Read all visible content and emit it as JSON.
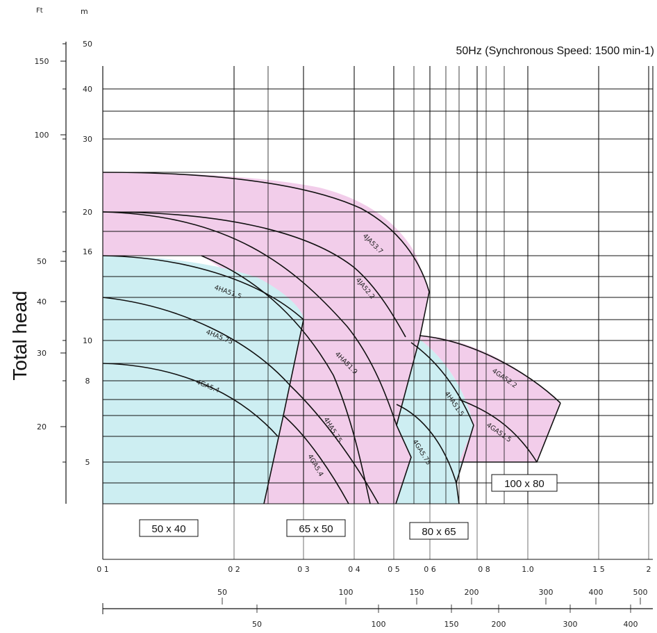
{
  "chart_data": {
    "type": "area",
    "title": "50Hz (Synchronous Speed: 1500 min-1)",
    "ylabel": "Total head",
    "y_unit_ft": "Ft",
    "y_unit_m": "m",
    "x_scale": "log",
    "y_scale": "log",
    "grid": true,
    "x_ticks_main": [
      "0 1",
      "0 2",
      "0 3",
      "0 4",
      "0 5",
      "0 6",
      "0 8",
      "1.0",
      "1 5",
      "2"
    ],
    "x_ticks_main_values": [
      0.1,
      0.2,
      0.3,
      0.4,
      0.5,
      0.6,
      0.8,
      1.0,
      1.5,
      2.0
    ],
    "x_ticks_second": [
      "50",
      "100",
      "150",
      "200",
      "300",
      "400",
      "500"
    ],
    "x_ticks_third": [
      "50",
      "100",
      "150",
      "200",
      "300",
      "400"
    ],
    "y_ticks_m": [
      "50",
      "40",
      "30",
      "20",
      "16",
      "10",
      "8",
      "5"
    ],
    "y_ticks_m_values": [
      50,
      40,
      30,
      20,
      16,
      10,
      8,
      5
    ],
    "y_ticks_ft": [
      "150",
      "100",
      "50",
      "40",
      "30",
      "20"
    ],
    "pump_sizes": [
      {
        "label": "50 x 40",
        "color": "#cdeef2"
      },
      {
        "label": "65 x 50",
        "color": "#f2cdea"
      },
      {
        "label": "80 x 65",
        "color": "#cdeef2"
      },
      {
        "label": "100 x 80",
        "color": "#f2cdea"
      }
    ],
    "series": [
      {
        "name": "4GA5.4",
        "size": "50 x 40",
        "x": [
          0.1,
          0.15,
          0.2,
          0.25,
          0.268
        ],
        "y": [
          8.8,
          8.5,
          7.9,
          6.8,
          6.0
        ]
      },
      {
        "name": "4HA5.75",
        "size": "50 x 40",
        "x": [
          0.1,
          0.15,
          0.2,
          0.25,
          0.284
        ],
        "y": [
          11.9,
          11.4,
          10.5,
          8.9,
          7.8
        ]
      },
      {
        "name": "4HA51.5",
        "size": "50 x 40",
        "x": [
          0.1,
          0.15,
          0.2,
          0.26,
          0.3
        ],
        "y": [
          14.7,
          14.2,
          13.4,
          11.9,
          10.6
        ]
      },
      {
        "name": "4GA5.4",
        "size": "65 x 50",
        "x": [
          0.268,
          0.3,
          0.33,
          0.36,
          0.39
        ],
        "y": [
          6.8,
          6.4,
          5.7,
          4.9,
          4.3
        ]
      },
      {
        "name": "4HA5.75",
        "size": "65 x 50",
        "x": [
          0.284,
          0.32,
          0.36,
          0.4,
          0.423
        ],
        "y": [
          7.8,
          7.4,
          6.5,
          5.0,
          4.3
        ]
      },
      {
        "name": "4HA51.5",
        "size": "65 x 50",
        "x": [
          0.3,
          0.34,
          0.4,
          0.46,
          0.492
        ],
        "y": [
          10.6,
          10.0,
          8.5,
          6.1,
          4.3
        ]
      },
      {
        "name": "4HA51.9",
        "size": "65 x 50",
        "x": [
          0.1,
          0.2,
          0.25,
          0.3,
          0.35,
          0.42,
          0.5
        ],
        "y": [
          14.8,
          14.4,
          13.4,
          12.1,
          10.7,
          8.6,
          6.2
        ]
      },
      {
        "name": "4JA52.2",
        "size": "65 x 50",
        "x": [
          0.1,
          0.2,
          0.3,
          0.35,
          0.4,
          0.46,
          0.51
        ],
        "y": [
          19.9,
          19.4,
          17.6,
          16.0,
          14.1,
          11.8,
          9.5
        ]
      },
      {
        "name": "4JA53.7",
        "size": "65 x 50",
        "x": [
          0.1,
          0.2,
          0.3,
          0.4,
          0.48,
          0.55,
          0.6
        ],
        "y": [
          25.0,
          24.8,
          23.6,
          20.8,
          17.2,
          13.3,
          11.8
        ]
      },
      {
        "name": "4GA5.75",
        "size": "80 x 65",
        "x": [
          0.5,
          0.55,
          0.6,
          0.66,
          0.7
        ],
        "y": [
          6.8,
          6.5,
          6.0,
          5.2,
          4.3
        ]
      },
      {
        "name": "4HA51.5",
        "size": "80 x 65",
        "x": [
          0.53,
          0.58,
          0.64,
          0.7,
          0.74
        ],
        "y": [
          9.7,
          9.1,
          8.2,
          7.0,
          6.2
        ]
      },
      {
        "name": "4GA51.5",
        "size": "100 x 80",
        "x": [
          0.7,
          0.8,
          0.9,
          1.0,
          1.07
        ],
        "y": [
          7.6,
          7.3,
          6.8,
          6.0,
          5.3
        ]
      },
      {
        "name": "4GA52.2",
        "size": "100 x 80",
        "x": [
          0.58,
          0.7,
          0.8,
          1.0,
          1.2
        ],
        "y": [
          10.2,
          9.9,
          9.5,
          8.6,
          7.5
        ]
      }
    ]
  }
}
